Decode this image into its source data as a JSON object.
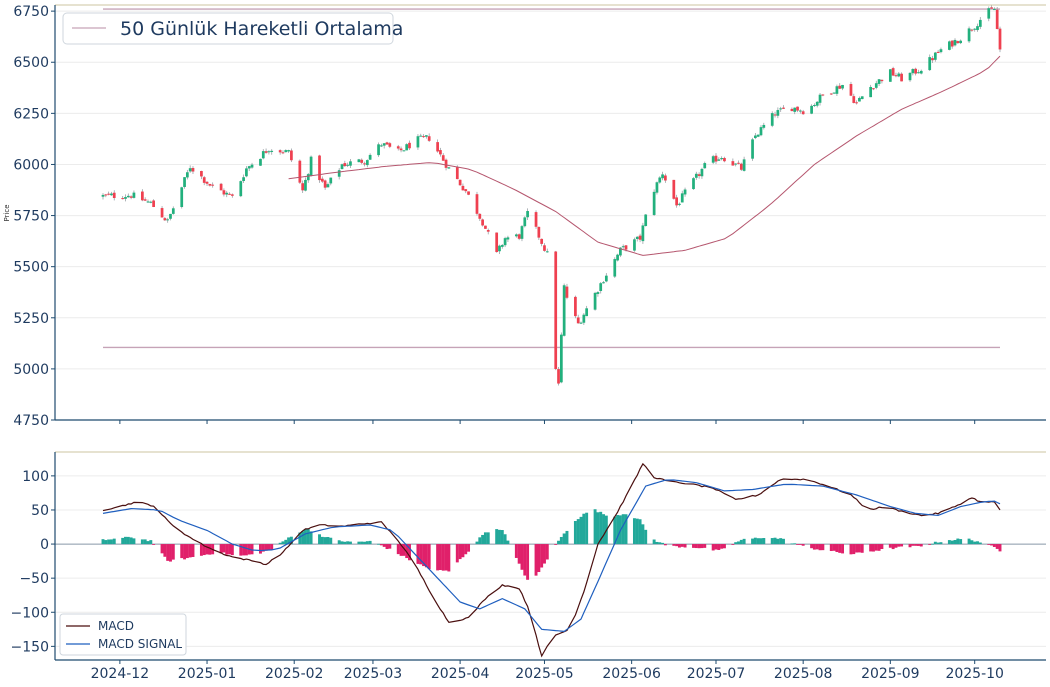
{
  "chart_data": [
    {
      "type": "candlestick",
      "ylabel": "Price",
      "ylim": [
        4750,
        6780
      ],
      "y_ticks": [
        4750,
        5000,
        5250,
        5500,
        5750,
        6000,
        6250,
        6500,
        6750
      ],
      "grid": true,
      "legend": {
        "placement": "top-left",
        "label": "50 Günlük Hareketli Ortalama"
      },
      "horizontal_lines": [
        6760,
        5105
      ],
      "colors": {
        "up": "#22b07d",
        "down": "#ef4050",
        "ma": "#b5566e",
        "hline": "#c6a3b7",
        "axis": "#1e4a6e",
        "text": "#1e3a5f"
      },
      "date_range": [
        "2024-11-25",
        "2025-10-10"
      ],
      "ohlc_anchors": [
        [
          "2024-11-25",
          5845
        ],
        [
          "2024-12-05",
          5850
        ],
        [
          "2024-12-12",
          5810
        ],
        [
          "2024-12-18",
          5720
        ],
        [
          "2024-12-26",
          5990
        ],
        [
          "2025-01-02",
          5900
        ],
        [
          "2025-01-10",
          5840
        ],
        [
          "2025-01-15",
          5980
        ],
        [
          "2025-01-23",
          6080
        ],
        [
          "2025-01-30",
          6060
        ],
        [
          "2025-02-04",
          5870
        ],
        [
          "2025-02-07",
          6020
        ],
        [
          "2025-02-12",
          5880
        ],
        [
          "2025-02-18",
          6000
        ],
        [
          "2025-02-26",
          6020
        ],
        [
          "2025-03-04",
          6100
        ],
        [
          "2025-03-10",
          6060
        ],
        [
          "2025-03-17",
          6120
        ],
        [
          "2025-03-21",
          6130
        ],
        [
          "2025-03-28",
          5980
        ],
        [
          "2025-04-03",
          5870
        ],
        [
          "2025-04-09",
          5720
        ],
        [
          "2025-04-14",
          5560
        ],
        [
          "2025-04-17",
          5640
        ],
        [
          "2025-04-22",
          5650
        ],
        [
          "2025-04-25",
          5760
        ],
        [
          "2025-04-29",
          5650
        ],
        [
          "2025-05-02",
          5560
        ],
        [
          "2025-05-04",
          5100
        ],
        [
          "2025-05-06",
          4920
        ],
        [
          "2025-05-08",
          5400
        ],
        [
          "2025-05-10",
          5300
        ],
        [
          "2025-05-13",
          5220
        ],
        [
          "2025-05-17",
          5320
        ],
        [
          "2025-05-22",
          5440
        ],
        [
          "2025-05-28",
          5580
        ],
        [
          "2025-06-04",
          5640
        ],
        [
          "2025-06-08",
          5850
        ],
        [
          "2025-06-12",
          5960
        ],
        [
          "2025-06-17",
          5800
        ],
        [
          "2025-06-22",
          5900
        ],
        [
          "2025-06-28",
          6010
        ],
        [
          "2025-07-03",
          6040
        ],
        [
          "2025-07-10",
          5980
        ],
        [
          "2025-07-15",
          6140
        ],
        [
          "2025-07-22",
          6250
        ],
        [
          "2025-07-28",
          6280
        ],
        [
          "2025-08-02",
          6260
        ],
        [
          "2025-08-08",
          6340
        ],
        [
          "2025-08-15",
          6390
        ],
        [
          "2025-08-20",
          6300
        ],
        [
          "2025-08-25",
          6380
        ],
        [
          "2025-09-01",
          6450
        ],
        [
          "2025-09-05",
          6420
        ],
        [
          "2025-09-12",
          6470
        ],
        [
          "2025-09-19",
          6560
        ],
        [
          "2025-09-26",
          6620
        ],
        [
          "2025-10-01",
          6680
        ],
        [
          "2025-10-05",
          6740
        ],
        [
          "2025-10-08",
          6760
        ],
        [
          "2025-10-10",
          6560
        ]
      ],
      "ma_anchors": [
        [
          "2025-01-30",
          5930
        ],
        [
          "2025-02-15",
          5960
        ],
        [
          "2025-03-05",
          5990
        ],
        [
          "2025-03-22",
          6010
        ],
        [
          "2025-04-05",
          5975
        ],
        [
          "2025-04-20",
          5880
        ],
        [
          "2025-05-05",
          5770
        ],
        [
          "2025-05-20",
          5620
        ],
        [
          "2025-06-05",
          5555
        ],
        [
          "2025-06-20",
          5580
        ],
        [
          "2025-07-05",
          5640
        ],
        [
          "2025-07-20",
          5800
        ],
        [
          "2025-08-05",
          6000
        ],
        [
          "2025-08-20",
          6140
        ],
        [
          "2025-09-05",
          6270
        ],
        [
          "2025-09-20",
          6360
        ],
        [
          "2025-10-05",
          6460
        ],
        [
          "2025-10-10",
          6530
        ]
      ]
    },
    {
      "type": "line",
      "ylim": [
        -170,
        135
      ],
      "y_ticks": [
        100,
        50,
        0,
        -50,
        -100,
        -150
      ],
      "x_tick_labels": [
        "2024-12",
        "2025-01",
        "2025-02",
        "2025-03",
        "2025-04",
        "2025-05",
        "2025-06",
        "2025-07",
        "2025-08",
        "2025-09",
        "2025-10"
      ],
      "grid": true,
      "legend": {
        "placement": "bottom-left"
      },
      "series": [
        {
          "name": "MACD",
          "color": "#4a0f0f",
          "anchors": [
            [
              "2024-11-25",
              50
            ],
            [
              "2024-12-01",
              55
            ],
            [
              "2024-12-07",
              62
            ],
            [
              "2024-12-13",
              56
            ],
            [
              "2024-12-19",
              30
            ],
            [
              "2024-12-25",
              12
            ],
            [
              "2024-12-30",
              0
            ],
            [
              "2025-01-05",
              -12
            ],
            [
              "2025-01-11",
              -20
            ],
            [
              "2025-01-18",
              -25
            ],
            [
              "2025-01-22",
              -30
            ],
            [
              "2025-01-28",
              -12
            ],
            [
              "2025-02-04",
              20
            ],
            [
              "2025-02-10",
              28
            ],
            [
              "2025-02-18",
              26
            ],
            [
              "2025-02-26",
              30
            ],
            [
              "2025-03-04",
              32
            ],
            [
              "2025-03-10",
              5
            ],
            [
              "2025-03-16",
              -30
            ],
            [
              "2025-03-22",
              -75
            ],
            [
              "2025-03-28",
              -115
            ],
            [
              "2025-04-04",
              -108
            ],
            [
              "2025-04-10",
              -80
            ],
            [
              "2025-04-16",
              -60
            ],
            [
              "2025-04-22",
              -65
            ],
            [
              "2025-04-26",
              -100
            ],
            [
              "2025-04-30",
              -165
            ],
            [
              "2025-05-04",
              -135
            ],
            [
              "2025-05-10",
              -125
            ],
            [
              "2025-05-15",
              -70
            ],
            [
              "2025-05-20",
              0
            ],
            [
              "2025-05-26",
              40
            ],
            [
              "2025-06-01",
              85
            ],
            [
              "2025-06-05",
              118
            ],
            [
              "2025-06-09",
              98
            ],
            [
              "2025-06-14",
              92
            ],
            [
              "2025-06-22",
              88
            ],
            [
              "2025-06-30",
              82
            ],
            [
              "2025-07-08",
              65
            ],
            [
              "2025-07-16",
              72
            ],
            [
              "2025-07-24",
              95
            ],
            [
              "2025-08-02",
              95
            ],
            [
              "2025-08-10",
              85
            ],
            [
              "2025-08-18",
              72
            ],
            [
              "2025-08-24",
              50
            ],
            [
              "2025-08-30",
              55
            ],
            [
              "2025-09-05",
              48
            ],
            [
              "2025-09-12",
              42
            ],
            [
              "2025-09-18",
              45
            ],
            [
              "2025-09-24",
              55
            ],
            [
              "2025-09-30",
              68
            ],
            [
              "2025-10-04",
              60
            ],
            [
              "2025-10-08",
              62
            ],
            [
              "2025-10-10",
              50
            ],
            [
              "2025-10-12",
              42
            ]
          ]
        },
        {
          "name": "MACD SIGNAL",
          "color": "#1f5fbf",
          "anchors": [
            [
              "2024-11-25",
              45
            ],
            [
              "2024-12-05",
              52
            ],
            [
              "2024-12-15",
              50
            ],
            [
              "2024-12-22",
              35
            ],
            [
              "2025-01-01",
              20
            ],
            [
              "2025-01-10",
              0
            ],
            [
              "2025-01-18",
              -10
            ],
            [
              "2025-01-26",
              -8
            ],
            [
              "2025-02-05",
              15
            ],
            [
              "2025-02-15",
              25
            ],
            [
              "2025-02-28",
              28
            ],
            [
              "2025-03-08",
              20
            ],
            [
              "2025-03-16",
              -15
            ],
            [
              "2025-03-24",
              -50
            ],
            [
              "2025-04-01",
              -85
            ],
            [
              "2025-04-08",
              -95
            ],
            [
              "2025-04-16",
              -80
            ],
            [
              "2025-04-24",
              -95
            ],
            [
              "2025-04-30",
              -125
            ],
            [
              "2025-05-08",
              -128
            ],
            [
              "2025-05-14",
              -110
            ],
            [
              "2025-05-20",
              -55
            ],
            [
              "2025-05-28",
              20
            ],
            [
              "2025-06-06",
              85
            ],
            [
              "2025-06-14",
              95
            ],
            [
              "2025-06-24",
              90
            ],
            [
              "2025-07-04",
              78
            ],
            [
              "2025-07-14",
              80
            ],
            [
              "2025-07-26",
              88
            ],
            [
              "2025-08-08",
              85
            ],
            [
              "2025-08-20",
              72
            ],
            [
              "2025-09-01",
              55
            ],
            [
              "2025-09-10",
              45
            ],
            [
              "2025-09-18",
              42
            ],
            [
              "2025-09-26",
              55
            ],
            [
              "2025-10-04",
              62
            ],
            [
              "2025-10-08",
              63
            ],
            [
              "2025-10-12",
              55
            ]
          ]
        }
      ],
      "histogram": {
        "pos_color": "#22a89a",
        "neg_color": "#e0206a",
        "anchors": [
          [
            "2024-11-25",
            6
          ],
          [
            "2024-12-05",
            10
          ],
          [
            "2024-12-12",
            5
          ],
          [
            "2024-12-18",
            -25
          ],
          [
            "2024-12-26",
            -20
          ],
          [
            "2025-01-05",
            -12
          ],
          [
            "2025-01-12",
            -18
          ],
          [
            "2025-01-18",
            -15
          ],
          [
            "2025-01-24",
            -8
          ],
          [
            "2025-02-01",
            15
          ],
          [
            "2025-02-06",
            22
          ],
          [
            "2025-02-12",
            10
          ],
          [
            "2025-02-20",
            3
          ],
          [
            "2025-03-01",
            4
          ],
          [
            "2025-03-08",
            -10
          ],
          [
            "2025-03-15",
            -25
          ],
          [
            "2025-03-22",
            -38
          ],
          [
            "2025-03-28",
            -40
          ],
          [
            "2025-04-04",
            -10
          ],
          [
            "2025-04-10",
            18
          ],
          [
            "2025-04-16",
            22
          ],
          [
            "2025-04-22",
            -30
          ],
          [
            "2025-04-26",
            -60
          ],
          [
            "2025-04-30",
            -35
          ],
          [
            "2025-05-06",
            5
          ],
          [
            "2025-05-12",
            35
          ],
          [
            "2025-05-18",
            52
          ],
          [
            "2025-05-24",
            40
          ],
          [
            "2025-05-30",
            45
          ],
          [
            "2025-06-04",
            35
          ],
          [
            "2025-06-08",
            8
          ],
          [
            "2025-06-14",
            -3
          ],
          [
            "2025-06-24",
            -5
          ],
          [
            "2025-07-02",
            -10
          ],
          [
            "2025-07-10",
            6
          ],
          [
            "2025-07-18",
            10
          ],
          [
            "2025-07-24",
            8
          ],
          [
            "2025-08-02",
            -5
          ],
          [
            "2025-08-10",
            -10
          ],
          [
            "2025-08-18",
            -15
          ],
          [
            "2025-08-26",
            -10
          ],
          [
            "2025-09-04",
            -5
          ],
          [
            "2025-09-12",
            -3
          ],
          [
            "2025-09-20",
            5
          ],
          [
            "2025-09-28",
            8
          ],
          [
            "2025-10-03",
            3
          ],
          [
            "2025-10-08",
            -5
          ],
          [
            "2025-10-12",
            -14
          ]
        ]
      }
    }
  ]
}
